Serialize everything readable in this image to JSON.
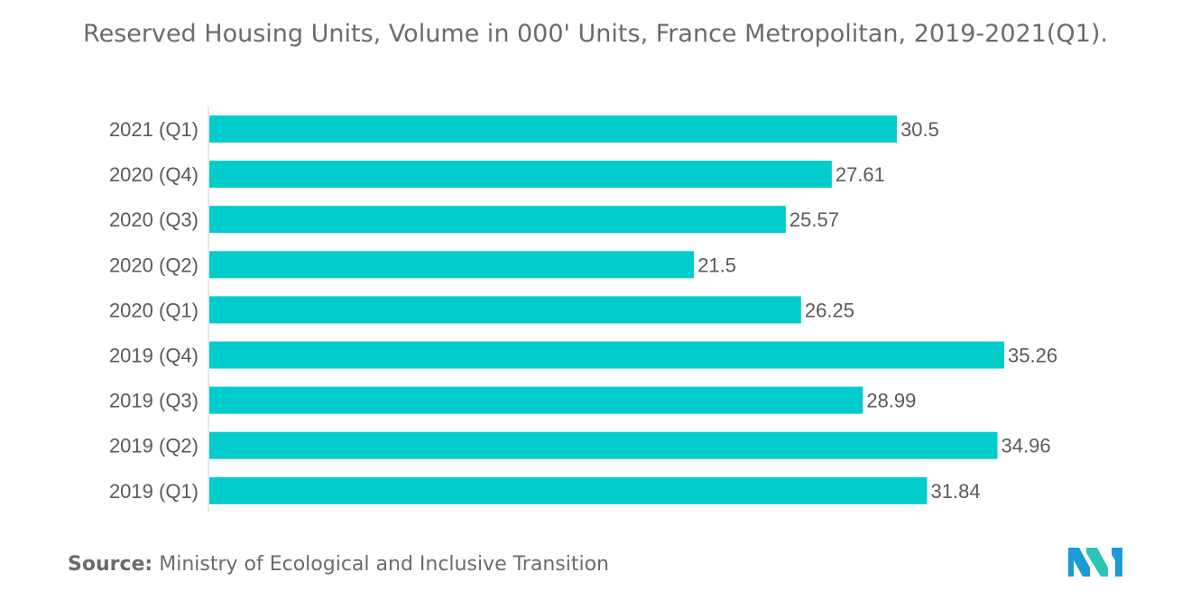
{
  "chart_data": {
    "type": "bar",
    "orientation": "horizontal",
    "title": "Reserved Housing Units, Volume in 000' Units, France Metropolitan, 2019-2021(Q1).",
    "categories": [
      "2021 (Q1)",
      "2020 (Q4)",
      "2020 (Q3)",
      "2020 (Q2)",
      "2020 (Q1)",
      "2019 (Q4)",
      "2019 (Q3)",
      "2019 (Q2)",
      "2019 (Q1)"
    ],
    "values": [
      30.5,
      27.61,
      25.57,
      21.5,
      26.25,
      35.26,
      28.99,
      34.96,
      31.84
    ],
    "value_labels": [
      "30.5",
      "27.61",
      "25.57",
      "21.5",
      "26.25",
      "35.26",
      "28.99",
      "34.96",
      "31.84"
    ],
    "xlim": [
      0,
      35.26
    ],
    "grid": false,
    "legend": "none",
    "bar_color": "#00cccc"
  },
  "source": {
    "label": "Source:",
    "text": "Ministry of Ecological and Inclusive Transition"
  },
  "logo": {
    "icon": "mordor-intelligence-logo-icon",
    "colors": [
      "#1a9bd7",
      "#2ec4b6"
    ]
  }
}
